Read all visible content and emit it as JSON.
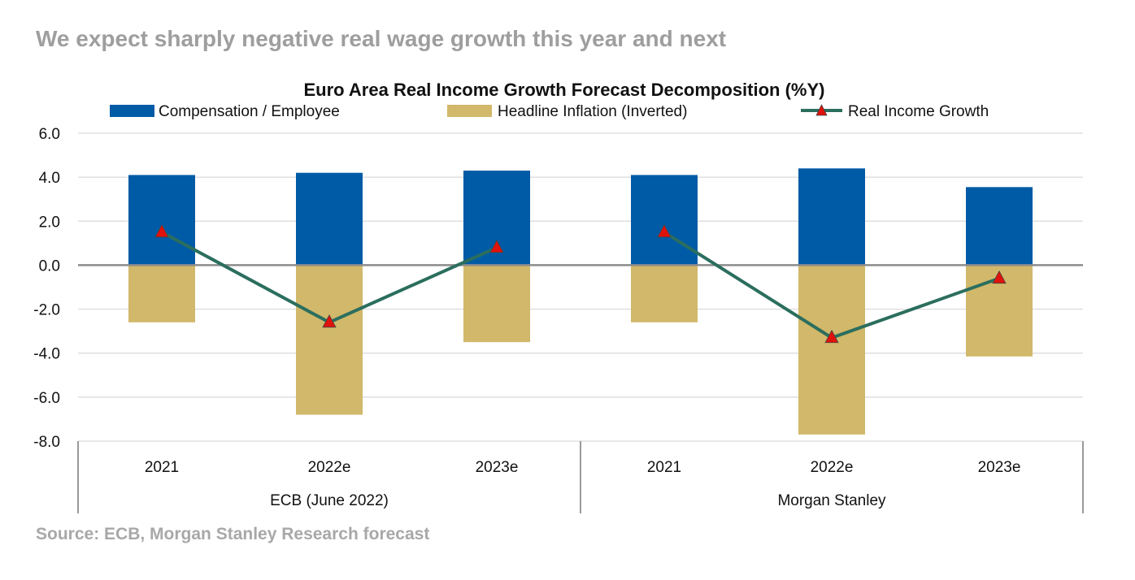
{
  "page": {
    "headline": "We expect sharply negative real wage growth this year and next",
    "source": "Source: ECB, Morgan Stanley Research forecast"
  },
  "chart_data": {
    "type": "bar",
    "title": "Euro Area Real Income Growth Forecast Decomposition (%Y)",
    "categories": [
      "2021",
      "2022e",
      "2023e",
      "2021",
      "2022e",
      "2023e"
    ],
    "groups": [
      {
        "label": "ECB (June 2022)",
        "span": 3
      },
      {
        "label": "Morgan Stanley",
        "span": 3
      }
    ],
    "series": [
      {
        "name": "Compensation / Employee",
        "kind": "bar",
        "color": "#005BA6",
        "values": [
          4.1,
          4.2,
          4.3,
          4.1,
          4.4,
          3.55
        ]
      },
      {
        "name": "Headline Inflation (Inverted)",
        "kind": "bar",
        "color": "#D1B86A",
        "values": [
          -2.6,
          -6.8,
          -3.5,
          -2.6,
          -7.7,
          -4.15
        ]
      },
      {
        "name": "Real Income Growth",
        "kind": "line",
        "color": "#2B6E5E",
        "marker_color": "#E0120C",
        "values": [
          1.5,
          -2.6,
          0.8,
          1.5,
          -3.3,
          -0.6
        ]
      }
    ],
    "ylim": [
      -8,
      6
    ],
    "yticks": [
      6,
      4,
      2,
      0,
      -2,
      -4,
      -6,
      -8
    ],
    "ytick_labels": [
      "6.0",
      "4.0",
      "2.0",
      "0.0",
      "-2.0",
      "-4.0",
      "-6.0",
      "-8.0"
    ],
    "grid": true,
    "legend": "top"
  }
}
